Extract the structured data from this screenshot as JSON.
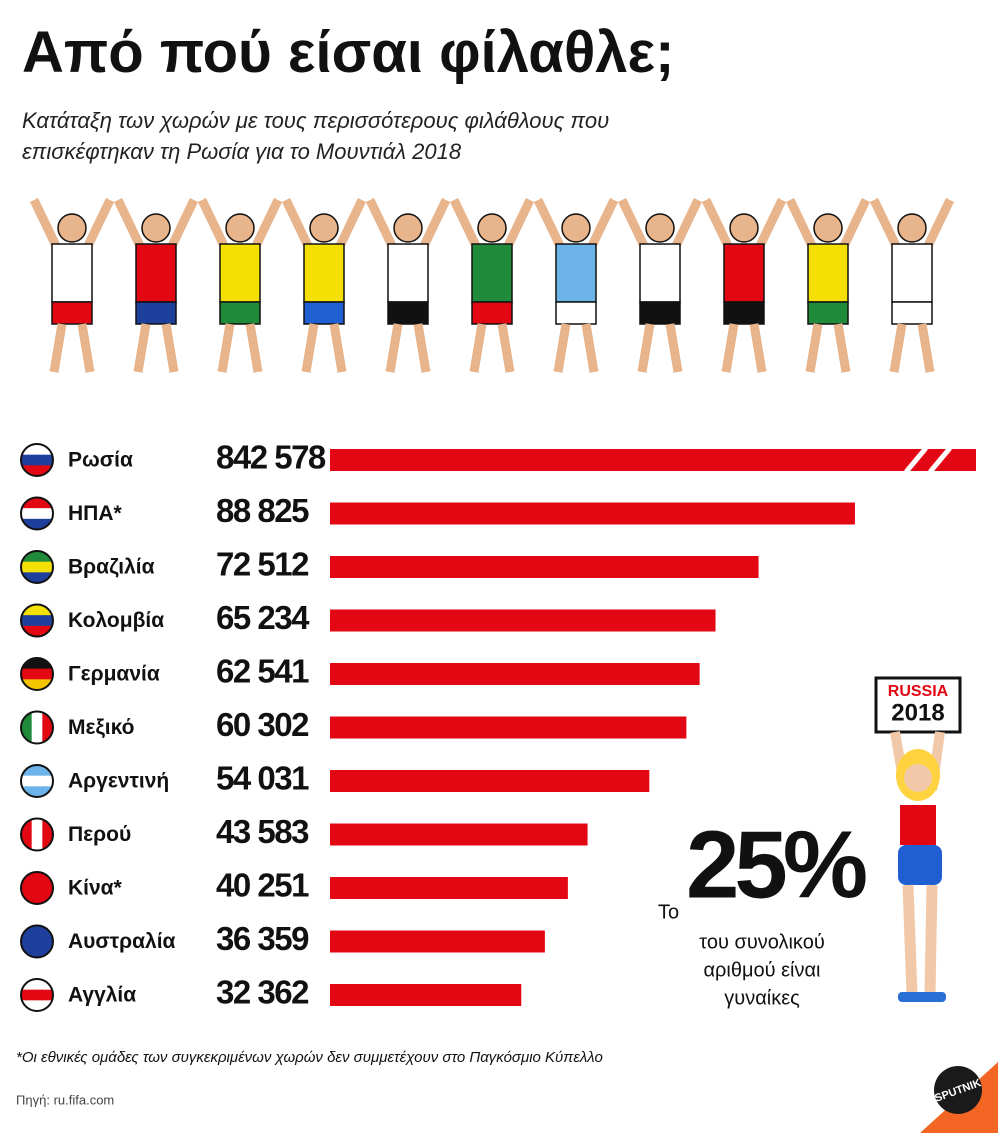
{
  "chart_data": {
    "type": "bar",
    "orientation": "horizontal",
    "title": "Από πού είσαι φίλαθλε;",
    "subtitle": [
      "Κατάταξη των χωρών με τους περισσότερους φιλάθλους που",
      "επισκέφτηκαν τη Ρωσία για το Μουντιάλ 2018"
    ],
    "categories": [
      "Ρωσία",
      "ΗΠΑ*",
      "Βραζιλία",
      "Κολομβία",
      "Γερμανία",
      "Μεξικό",
      "Αργεντινή",
      "Περού",
      "Κίνα*",
      "Αυστραλία",
      "Αγγλία"
    ],
    "values": [
      842578,
      88825,
      72512,
      65234,
      62541,
      60302,
      54031,
      43583,
      40251,
      36359,
      32362
    ],
    "value_labels": [
      "842 578",
      "88 825",
      "72 512",
      "65 234",
      "62 541",
      "60 302",
      "54 031",
      "43 583",
      "40 251",
      "36 359",
      "32 362"
    ],
    "color": "#e30613",
    "xlim": [
      0,
      100000
    ],
    "callout": {
      "prefix": "Το",
      "value": 25,
      "value_label": "25%",
      "text": [
        "του συνολικού",
        "αριθμού είναι",
        "γυναίκες"
      ]
    },
    "sign": [
      "RUSSIA",
      "2018"
    ],
    "footnote": "*Οι εθνικές ομάδες των συγκεκριμένων χωρών δεν συμμετέχουν στο Παγκόσμιο Κύπελλο",
    "source": "Πηγή: ru.fifa.com",
    "logo": "SPUTNIK"
  }
}
